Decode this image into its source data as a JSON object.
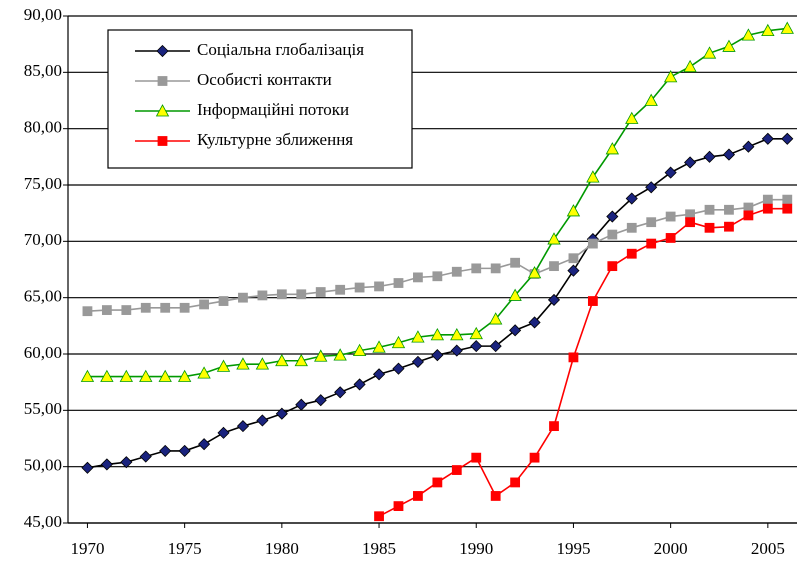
{
  "chart_data": {
    "type": "line",
    "x": [
      1970,
      1971,
      1972,
      1973,
      1974,
      1975,
      1976,
      1977,
      1978,
      1979,
      1980,
      1981,
      1982,
      1983,
      1984,
      1985,
      1986,
      1987,
      1988,
      1989,
      1990,
      1991,
      1992,
      1993,
      1994,
      1995,
      1996,
      1997,
      1998,
      1999,
      2000,
      2001,
      2002,
      2003,
      2004,
      2005,
      2006
    ],
    "xlim": [
      1969,
      2006.5
    ],
    "xticks": [
      1970,
      1975,
      1980,
      1985,
      1990,
      1995,
      2000,
      2005
    ],
    "ylim": [
      45,
      90
    ],
    "yticks": [
      {
        "value": 45,
        "label": "45,00"
      },
      {
        "value": 50,
        "label": "50,00"
      },
      {
        "value": 55,
        "label": "55,00"
      },
      {
        "value": 60,
        "label": "60,00"
      },
      {
        "value": 65,
        "label": "65,00"
      },
      {
        "value": 70,
        "label": "70,00"
      },
      {
        "value": 75,
        "label": "75,00"
      },
      {
        "value": 80,
        "label": "80,00"
      },
      {
        "value": 85,
        "label": "85,00"
      },
      {
        "value": 90,
        "label": "90,00"
      }
    ],
    "grid": true,
    "legend": "top-left",
    "series": [
      {
        "name": "Соціальна глобалізація",
        "color": "#000000",
        "marker": "diamond",
        "marker_color": "#1a237e",
        "values": [
          49.9,
          50.2,
          50.4,
          50.9,
          51.4,
          51.4,
          52.0,
          53.0,
          53.6,
          54.1,
          54.7,
          55.5,
          55.9,
          56.6,
          57.3,
          58.2,
          58.7,
          59.3,
          59.9,
          60.3,
          60.7,
          60.7,
          62.1,
          62.8,
          64.8,
          67.4,
          70.2,
          72.2,
          73.8,
          74.8,
          76.1,
          77.0,
          77.5,
          77.7,
          78.4,
          79.1,
          79.1
        ]
      },
      {
        "name": "Особисті контакти",
        "color": "#999999",
        "marker": "square",
        "marker_color": "#999999",
        "values": [
          63.8,
          63.9,
          63.9,
          64.1,
          64.1,
          64.1,
          64.4,
          64.7,
          65.0,
          65.2,
          65.3,
          65.3,
          65.5,
          65.7,
          65.9,
          66.0,
          66.3,
          66.8,
          66.9,
          67.3,
          67.6,
          67.6,
          68.1,
          67.1,
          67.8,
          68.5,
          69.8,
          70.6,
          71.2,
          71.7,
          72.2,
          72.4,
          72.8,
          72.8,
          73.0,
          73.7,
          73.7
        ]
      },
      {
        "name": "Інформаційні потоки",
        "color": "#009900",
        "marker": "triangle",
        "marker_color": "#ffff00",
        "values": [
          58.0,
          58.0,
          58.0,
          58.0,
          58.0,
          58.0,
          58.3,
          58.9,
          59.1,
          59.1,
          59.4,
          59.4,
          59.8,
          59.9,
          60.3,
          60.6,
          61.0,
          61.5,
          61.7,
          61.7,
          61.8,
          63.1,
          65.2,
          67.2,
          70.2,
          72.7,
          75.7,
          78.2,
          80.9,
          82.5,
          84.6,
          85.5,
          86.7,
          87.3,
          88.3,
          88.7,
          88.9
        ]
      },
      {
        "name": "Культурне зближення",
        "color": "#ff0000",
        "marker": "square",
        "marker_color": "#ff0000",
        "values": [
          null,
          null,
          null,
          null,
          null,
          null,
          null,
          null,
          null,
          null,
          null,
          null,
          null,
          null,
          null,
          45.6,
          46.5,
          47.4,
          48.6,
          49.7,
          50.8,
          47.4,
          48.6,
          50.8,
          53.6,
          59.7,
          64.7,
          67.8,
          68.9,
          69.8,
          70.3,
          71.7,
          71.2,
          71.3,
          72.3,
          72.9,
          72.9
        ]
      }
    ]
  }
}
